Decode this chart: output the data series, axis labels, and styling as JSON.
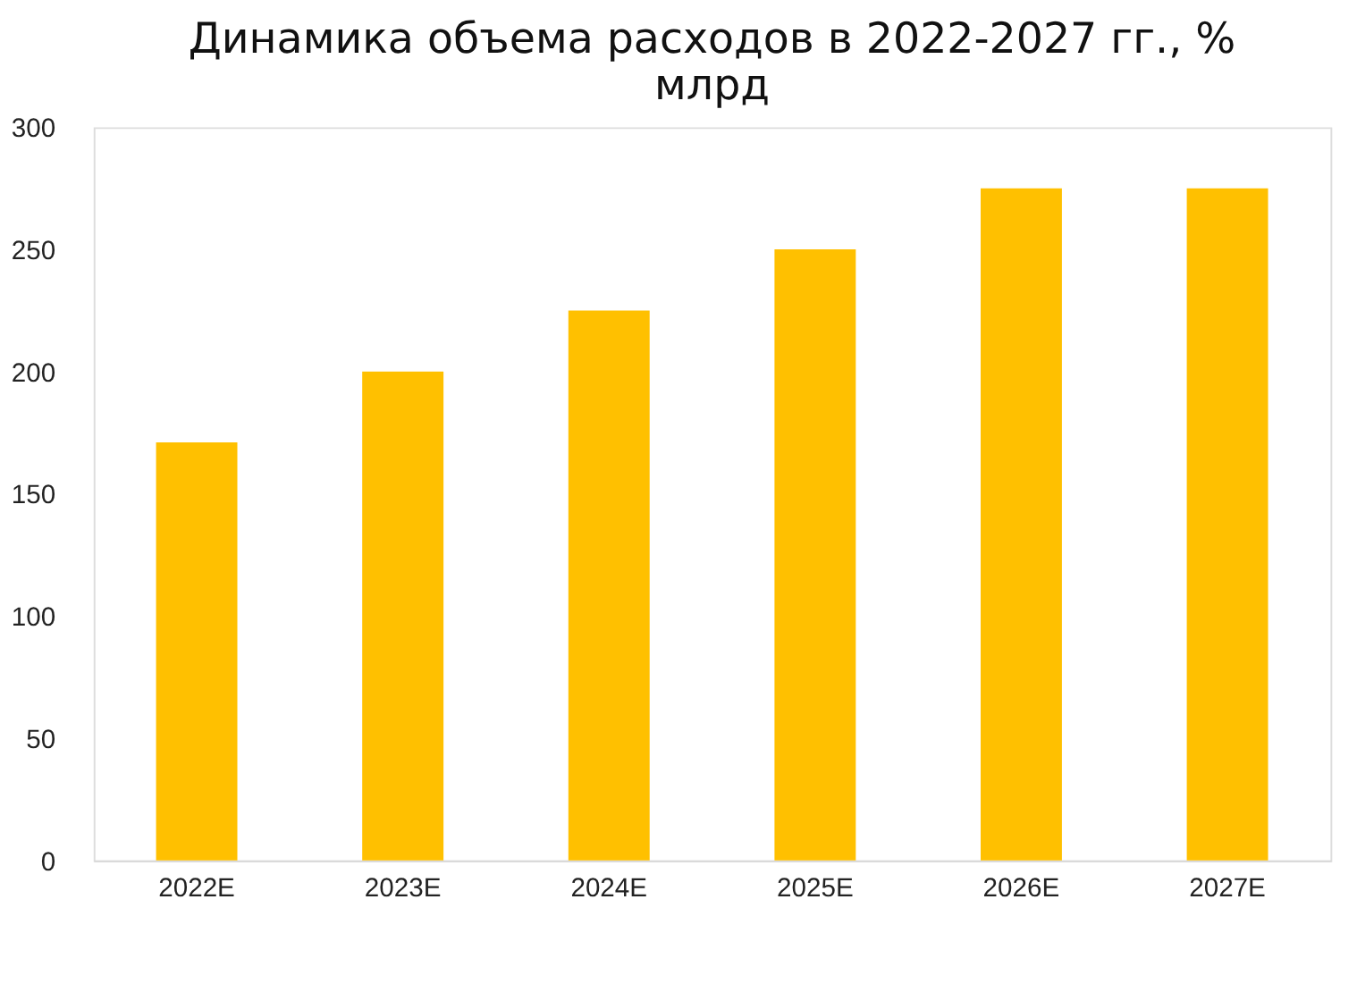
{
  "chart_data": {
    "type": "bar",
    "title": "Динамика объема расходов в 2022-2027 гг., % млрд",
    "categories": [
      "2022E",
      "2023E",
      "2024E",
      "2025E",
      "2026E",
      "2027E"
    ],
    "values": [
      171,
      200,
      225,
      250,
      275,
      275
    ],
    "color": "#ffc000",
    "ylim": [
      0,
      300
    ],
    "yticks": [
      0,
      50,
      100,
      150,
      200,
      250,
      300
    ],
    "grid": false
  }
}
